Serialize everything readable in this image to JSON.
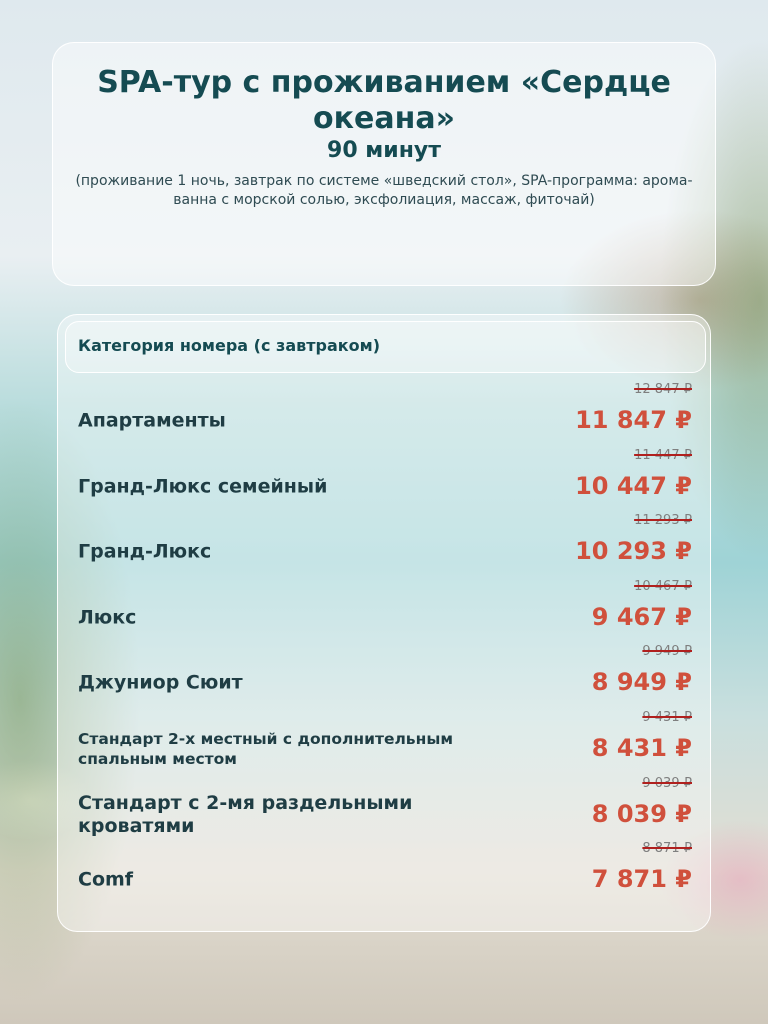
{
  "header": {
    "title": "SPA-тур с проживанием «Сердце океана»",
    "duration": "90 минут",
    "description": "(проживание 1 ночь, завтрак по системе «шведский стол», SPA-программа: арома-ванна с морской солью, эксфолиация, массаж, фиточай)"
  },
  "table": {
    "column_header": "Категория номера (с завтраком)",
    "rows": [
      {
        "name": "Апартаменты",
        "old_price": "12 847 ₽",
        "price": "11 847 ₽"
      },
      {
        "name": "Гранд-Люкс семейный",
        "old_price": "11 447 ₽",
        "price": "10 447 ₽"
      },
      {
        "name": "Гранд-Люкс",
        "old_price": "11 293 ₽",
        "price": "10 293 ₽"
      },
      {
        "name": "Люкс",
        "old_price": "10 467 ₽",
        "price": "9 467 ₽"
      },
      {
        "name": "Джуниор Сюит",
        "old_price": "9 949 ₽",
        "price": "8 949 ₽"
      },
      {
        "name": "Стандарт 2-х местный с дополнительным спальным местом",
        "old_price": "9 431 ₽",
        "price": "8 431 ₽"
      },
      {
        "name": "Стандарт с 2-мя раздельными кроватями",
        "old_price": "9 039 ₽",
        "price": "8 039 ₽"
      },
      {
        "name": "Comf",
        "old_price": "8 871 ₽",
        "price": "7 871 ₽"
      }
    ]
  },
  "colors": {
    "title": "#154b52",
    "price": "#d0503c",
    "strike": "#b0201e"
  }
}
